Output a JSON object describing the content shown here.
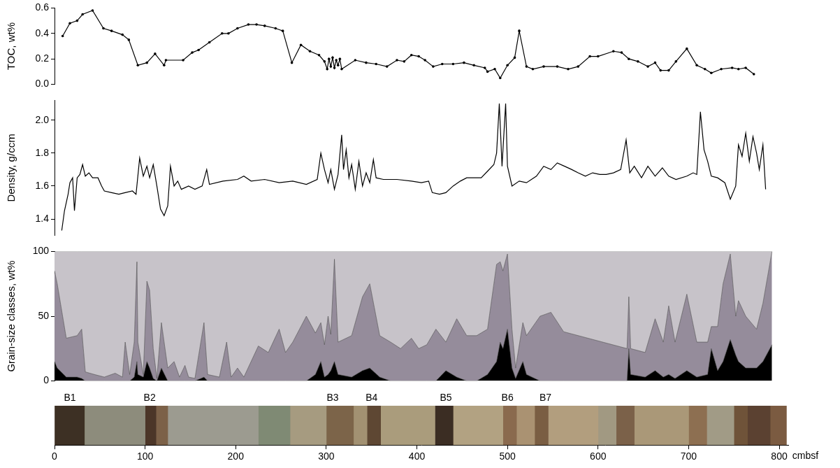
{
  "chart_data": [
    {
      "type": "line",
      "y_label": "TOC, wt%",
      "color": "#000000",
      "marker": "circle",
      "grid": false,
      "tick_labels": "y",
      "xlim": [
        0,
        810
      ],
      "ylim": [
        0,
        0.6
      ],
      "yticks": [
        {
          "value": 0,
          "label": "0.0"
        },
        0.2,
        0.4,
        0.6
      ],
      "x": [
        9,
        17,
        25,
        31,
        42,
        54,
        63,
        75,
        82,
        92,
        102,
        111,
        121,
        123,
        142,
        152,
        159,
        171,
        185,
        192,
        202,
        214,
        223,
        232,
        244,
        252,
        262,
        272,
        282,
        292,
        298,
        301,
        303,
        305,
        307,
        309,
        311,
        313,
        315,
        317,
        332,
        344,
        355,
        367,
        378,
        386,
        394,
        402,
        409,
        418,
        428,
        440,
        452,
        463,
        475,
        478,
        486,
        492,
        500,
        508,
        513,
        521,
        528,
        540,
        555,
        567,
        578,
        591,
        600,
        617,
        626,
        634,
        644,
        655,
        663,
        669,
        678,
        686,
        698,
        709,
        718,
        725,
        736,
        748,
        755,
        763,
        772
      ],
      "values": [
        0.38,
        0.48,
        0.5,
        0.55,
        0.58,
        0.44,
        0.42,
        0.39,
        0.35,
        0.15,
        0.17,
        0.24,
        0.15,
        0.19,
        0.19,
        0.25,
        0.27,
        0.33,
        0.4,
        0.4,
        0.44,
        0.47,
        0.47,
        0.46,
        0.44,
        0.42,
        0.17,
        0.31,
        0.26,
        0.23,
        0.18,
        0.12,
        0.2,
        0.14,
        0.21,
        0.13,
        0.19,
        0.15,
        0.2,
        0.12,
        0.19,
        0.17,
        0.16,
        0.14,
        0.19,
        0.18,
        0.23,
        0.22,
        0.19,
        0.14,
        0.16,
        0.16,
        0.17,
        0.15,
        0.13,
        0.1,
        0.12,
        0.05,
        0.15,
        0.21,
        0.42,
        0.14,
        0.12,
        0.14,
        0.14,
        0.12,
        0.14,
        0.22,
        0.22,
        0.26,
        0.25,
        0.2,
        0.18,
        0.14,
        0.17,
        0.11,
        0.11,
        0.18,
        0.28,
        0.15,
        0.12,
        0.09,
        0.12,
        0.13,
        0.12,
        0.13,
        0.08
      ]
    },
    {
      "type": "line",
      "y_label": "Density, g/ccm",
      "color": "#000000",
      "grid": false,
      "tick_labels": "y",
      "xlim": [
        0,
        810
      ],
      "ylim": [
        1.3,
        2.12
      ],
      "yticks": [
        1.4,
        1.6,
        1.8,
        {
          "value": 2,
          "label": "2.0"
        }
      ],
      "x": [
        8,
        11,
        15,
        17,
        20,
        22,
        25,
        28,
        31,
        34,
        38,
        42,
        48,
        52,
        55,
        63,
        71,
        78,
        86,
        90,
        94,
        98,
        102,
        105,
        109,
        113,
        117,
        121,
        125,
        128,
        132,
        136,
        140,
        148,
        155,
        163,
        168,
        171,
        186,
        202,
        209,
        217,
        232,
        248,
        263,
        278,
        290,
        294,
        298,
        302,
        305,
        309,
        313,
        317,
        319,
        322,
        325,
        328,
        332,
        336,
        340,
        344,
        348,
        352,
        355,
        363,
        378,
        394,
        405,
        413,
        417,
        425,
        432,
        440,
        448,
        455,
        471,
        478,
        485,
        488,
        491,
        494,
        498,
        500,
        505,
        513,
        521,
        532,
        540,
        548,
        555,
        563,
        571,
        578,
        586,
        594,
        602,
        609,
        617,
        625,
        631,
        635,
        640,
        648,
        655,
        663,
        671,
        678,
        686,
        698,
        705,
        709,
        713,
        717,
        721,
        725,
        732,
        740,
        746,
        752,
        755,
        759,
        763,
        767,
        771,
        775,
        778,
        782,
        785
      ],
      "values": [
        1.33,
        1.45,
        1.55,
        1.62,
        1.65,
        1.45,
        1.65,
        1.67,
        1.73,
        1.66,
        1.68,
        1.65,
        1.65,
        1.6,
        1.57,
        1.56,
        1.55,
        1.56,
        1.57,
        1.55,
        1.77,
        1.66,
        1.72,
        1.65,
        1.73,
        1.6,
        1.46,
        1.42,
        1.48,
        1.72,
        1.6,
        1.63,
        1.58,
        1.6,
        1.58,
        1.6,
        1.7,
        1.61,
        1.63,
        1.64,
        1.66,
        1.63,
        1.64,
        1.62,
        1.63,
        1.61,
        1.64,
        1.8,
        1.7,
        1.62,
        1.7,
        1.58,
        1.67,
        1.91,
        1.7,
        1.82,
        1.65,
        1.73,
        1.58,
        1.75,
        1.6,
        1.68,
        1.62,
        1.76,
        1.65,
        1.64,
        1.64,
        1.63,
        1.62,
        1.63,
        1.56,
        1.55,
        1.56,
        1.6,
        1.63,
        1.65,
        1.65,
        1.69,
        1.73,
        1.8,
        2.1,
        1.72,
        2.1,
        1.72,
        1.6,
        1.63,
        1.62,
        1.66,
        1.72,
        1.7,
        1.74,
        1.72,
        1.7,
        1.68,
        1.66,
        1.68,
        1.67,
        1.67,
        1.68,
        1.7,
        1.88,
        1.68,
        1.72,
        1.65,
        1.72,
        1.66,
        1.71,
        1.66,
        1.64,
        1.66,
        1.68,
        1.67,
        2.05,
        1.82,
        1.75,
        1.66,
        1.65,
        1.62,
        1.52,
        1.6,
        1.85,
        1.78,
        1.92,
        1.75,
        1.9,
        1.8,
        1.7,
        1.85,
        1.58
      ]
    },
    {
      "type": "area",
      "stacked": true,
      "y_label": "Grain-size classes, wt%",
      "grid": false,
      "tick_labels": "y",
      "xlim": [
        0,
        810
      ],
      "ylim": [
        0,
        100
      ],
      "yticks": [
        0,
        50,
        100
      ],
      "x": [
        0,
        3,
        13,
        25,
        30,
        34,
        44,
        55,
        67,
        75,
        78,
        83,
        88,
        91,
        92,
        98,
        102,
        105,
        109,
        113,
        118,
        125,
        132,
        138,
        144,
        148,
        155,
        165,
        169,
        182,
        190,
        195,
        202,
        209,
        225,
        236,
        248,
        255,
        263,
        278,
        288,
        294,
        298,
        302,
        305,
        309,
        313,
        328,
        340,
        348,
        359,
        371,
        382,
        394,
        402,
        411,
        421,
        432,
        444,
        455,
        466,
        478,
        488,
        492,
        495,
        500,
        505,
        509,
        517,
        521,
        536,
        548,
        562,
        632,
        634,
        636,
        652,
        663,
        672,
        678,
        685,
        698,
        709,
        721,
        725,
        732,
        738,
        746,
        752,
        755,
        763,
        775,
        782,
        792
      ],
      "series": [
        {
          "color": "#000000",
          "values": [
            15,
            10,
            3,
            3,
            2,
            0,
            0,
            0,
            0,
            0,
            0,
            0,
            3,
            15,
            5,
            3,
            15,
            10,
            2,
            0,
            10,
            0,
            0,
            0,
            0,
            0,
            0,
            3,
            0,
            0,
            0,
            0,
            0,
            0,
            0,
            0,
            0,
            0,
            0,
            0,
            5,
            15,
            3,
            5,
            8,
            15,
            5,
            3,
            8,
            10,
            3,
            0,
            0,
            0,
            0,
            0,
            0,
            8,
            3,
            0,
            0,
            5,
            15,
            30,
            25,
            40,
            10,
            2,
            15,
            5,
            0,
            0,
            0,
            0,
            25,
            5,
            3,
            8,
            3,
            5,
            2,
            8,
            3,
            5,
            25,
            8,
            15,
            32,
            20,
            15,
            10,
            10,
            15,
            28
          ]
        },
        {
          "color": "#958c9b",
          "values": [
            70,
            65,
            30,
            32,
            38,
            7,
            5,
            3,
            6,
            3,
            30,
            5,
            27,
            77,
            25,
            2,
            62,
            60,
            23,
            2,
            35,
            10,
            15,
            3,
            12,
            3,
            2,
            42,
            5,
            3,
            30,
            3,
            10,
            3,
            27,
            22,
            40,
            22,
            30,
            50,
            32,
            30,
            25,
            45,
            28,
            79,
            25,
            32,
            57,
            65,
            32,
            30,
            25,
            33,
            25,
            28,
            40,
            22,
            45,
            35,
            35,
            35,
            75,
            62,
            60,
            58,
            30,
            8,
            30,
            30,
            50,
            53,
            38,
            25,
            40,
            20,
            19,
            40,
            27,
            53,
            28,
            59,
            27,
            25,
            17,
            34,
            60,
            66,
            30,
            47,
            40,
            30,
            45,
            72
          ]
        },
        {
          "color": "#c7c3c9",
          "values": [
            15,
            25,
            67,
            65,
            60,
            93,
            95,
            97,
            94,
            97,
            70,
            95,
            70,
            8,
            70,
            95,
            23,
            30,
            75,
            98,
            55,
            90,
            85,
            97,
            88,
            97,
            98,
            55,
            95,
            97,
            70,
            97,
            90,
            97,
            73,
            78,
            60,
            78,
            70,
            50,
            63,
            55,
            72,
            50,
            64,
            6,
            70,
            65,
            35,
            25,
            65,
            70,
            75,
            67,
            75,
            72,
            60,
            70,
            52,
            65,
            65,
            60,
            10,
            8,
            15,
            2,
            60,
            90,
            55,
            65,
            50,
            47,
            62,
            75,
            35,
            75,
            78,
            52,
            70,
            42,
            70,
            33,
            70,
            70,
            58,
            58,
            25,
            2,
            50,
            38,
            50,
            60,
            40,
            0
          ]
        }
      ]
    },
    {
      "type": "bar",
      "orientation": "horizontal",
      "tick_labels": "x",
      "grid": false,
      "x_label": "cmbsf",
      "xlim": [
        0,
        810
      ],
      "xticks": [
        0,
        100,
        200,
        300,
        400,
        500,
        600,
        700,
        800
      ],
      "segments": [
        {
          "from": 0,
          "to": 33,
          "color": "#3d3024"
        },
        {
          "from": 33,
          "to": 100,
          "color": "#8d8c7c"
        },
        {
          "from": 100,
          "to": 112,
          "color": "#4c3628"
        },
        {
          "from": 112,
          "to": 125,
          "color": "#7c6148"
        },
        {
          "from": 125,
          "to": 225,
          "color": "#9c9b90"
        },
        {
          "from": 225,
          "to": 260,
          "color": "#7f8a74"
        },
        {
          "from": 260,
          "to": 300,
          "color": "#a69b80"
        },
        {
          "from": 300,
          "to": 330,
          "color": "#7c6449"
        },
        {
          "from": 330,
          "to": 345,
          "color": "#a29172"
        },
        {
          "from": 345,
          "to": 360,
          "color": "#5e4733"
        },
        {
          "from": 360,
          "to": 420,
          "color": "#aa9c7c"
        },
        {
          "from": 420,
          "to": 440,
          "color": "#3b2d23"
        },
        {
          "from": 440,
          "to": 495,
          "color": "#b2a282"
        },
        {
          "from": 495,
          "to": 510,
          "color": "#8a6a4e"
        },
        {
          "from": 510,
          "to": 530,
          "color": "#aa9272"
        },
        {
          "from": 530,
          "to": 545,
          "color": "#7a5e43"
        },
        {
          "from": 545,
          "to": 600,
          "color": "#b29e7e"
        },
        {
          "from": 600,
          "to": 620,
          "color": "#a19982"
        },
        {
          "from": 620,
          "to": 640,
          "color": "#7b6149"
        },
        {
          "from": 640,
          "to": 700,
          "color": "#aa9878"
        },
        {
          "from": 700,
          "to": 720,
          "color": "#8d6f51"
        },
        {
          "from": 720,
          "to": 750,
          "color": "#a19b86"
        },
        {
          "from": 750,
          "to": 765,
          "color": "#6f5339"
        },
        {
          "from": 765,
          "to": 790,
          "color": "#5b4131"
        },
        {
          "from": 790,
          "to": 808,
          "color": "#7b5b41"
        }
      ],
      "annotations": [
        {
          "text": "B1",
          "x": 17
        },
        {
          "text": "B2",
          "x": 105
        },
        {
          "text": "B3",
          "x": 307
        },
        {
          "text": "B4",
          "x": 350
        },
        {
          "text": "B5",
          "x": 432
        },
        {
          "text": "B6",
          "x": 500
        },
        {
          "text": "B7",
          "x": 542
        }
      ]
    }
  ]
}
